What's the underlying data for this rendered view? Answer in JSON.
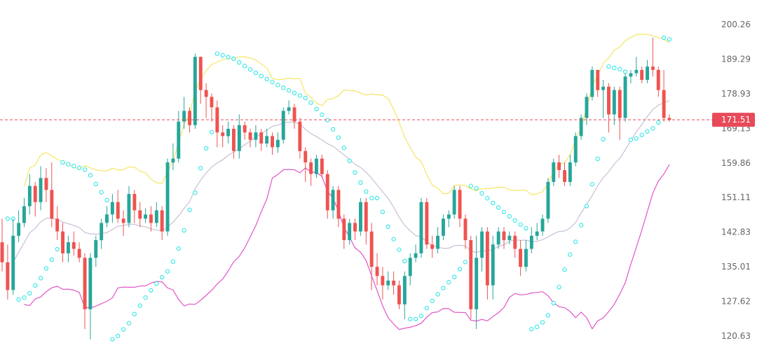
{
  "chart_data": {
    "type": "candlestick",
    "y_ticks": [
      "200.26",
      "189.29",
      "178.93",
      "169.13",
      "159.86",
      "151.11",
      "142.83",
      "135.01",
      "127.62",
      "120.63"
    ],
    "y_tick_values": [
      200.26,
      189.29,
      178.93,
      169.13,
      159.86,
      151.11,
      142.83,
      135.01,
      127.62,
      120.63
    ],
    "scale": "log",
    "ylim": [
      118.5,
      205
    ],
    "grid": false,
    "last_price": {
      "label": "171.51",
      "value": 171.51
    },
    "colors": {
      "up": "#26a69a",
      "down": "#ef5350",
      "upper_band": "#f5e663",
      "lower_band": "#e056c8",
      "middle_band": "#c9bfd6",
      "sar": "#2ee6e6",
      "price_tag": "#e84a5a"
    },
    "candles": [
      [
        140.5,
        136.0,
        146.0,
        134.0
      ],
      [
        136.0,
        130.0,
        140.0,
        128.0
      ],
      [
        130.0,
        142.0,
        146.0,
        129.0
      ],
      [
        142.0,
        145.0,
        148.0,
        140.5
      ],
      [
        145.0,
        149.0,
        151.0,
        144.0
      ],
      [
        149.0,
        154.0,
        157.0,
        147.0
      ],
      [
        154.0,
        150.0,
        155.0,
        146.5
      ],
      [
        150.0,
        156.0,
        159.0,
        148.0
      ],
      [
        156.0,
        153.0,
        158.5,
        150.0
      ],
      [
        153.0,
        146.0,
        160.0,
        144.0
      ],
      [
        146.0,
        143.0,
        149.0,
        141.0
      ],
      [
        143.0,
        138.0,
        145.0,
        136.0
      ],
      [
        138.0,
        140.5,
        142.0,
        136.0
      ],
      [
        140.5,
        139.0,
        143.0,
        137.5
      ],
      [
        139.0,
        137.0,
        140.5,
        136.0
      ],
      [
        137.0,
        126.0,
        138.0,
        122.0
      ],
      [
        126.0,
        137.0,
        138.0,
        120.0
      ],
      [
        137.0,
        141.0,
        142.0,
        135.0
      ],
      [
        141.0,
        145.0,
        146.0,
        139.0
      ],
      [
        145.0,
        147.0,
        149.0,
        144.0
      ],
      [
        147.0,
        150.0,
        152.0,
        145.0
      ],
      [
        150.0,
        146.0,
        153.0,
        145.0
      ],
      [
        146.0,
        145.0,
        148.0,
        142.0
      ],
      [
        145.0,
        152.0,
        154.0,
        144.0
      ],
      [
        152.0,
        148.0,
        153.0,
        145.0
      ],
      [
        148.0,
        146.0,
        150.0,
        144.0
      ],
      [
        146.0,
        147.0,
        148.5,
        145.0
      ],
      [
        147.0,
        145.0,
        149.0,
        143.0
      ],
      [
        145.0,
        148.0,
        150.0,
        144.0
      ],
      [
        148.0,
        143.0,
        149.0,
        141.0
      ],
      [
        143.0,
        160.0,
        161.0,
        142.0
      ],
      [
        160.0,
        161.0,
        165.0,
        158.0
      ],
      [
        161.0,
        171.0,
        174.0,
        160.0
      ],
      [
        171.0,
        174.0,
        178.0,
        169.0
      ],
      [
        174.0,
        170.0,
        175.0,
        168.0
      ],
      [
        170.0,
        190.0,
        191.0,
        169.0
      ],
      [
        190.0,
        180.0,
        190.0,
        176.0
      ],
      [
        180.0,
        178.0,
        182.0,
        172.0
      ],
      [
        178.0,
        175.0,
        179.0,
        171.0
      ],
      [
        175.0,
        168.0,
        177.0,
        164.0
      ],
      [
        168.0,
        167.0,
        170.0,
        164.0
      ],
      [
        167.0,
        169.0,
        171.0,
        165.0
      ],
      [
        169.0,
        163.0,
        170.0,
        161.0
      ],
      [
        163.0,
        170.0,
        173.0,
        161.0
      ],
      [
        170.0,
        168.0,
        171.0,
        166.0
      ],
      [
        168.0,
        166.0,
        169.0,
        164.0
      ],
      [
        166.0,
        168.0,
        170.0,
        164.0
      ],
      [
        168.0,
        165.0,
        169.0,
        163.0
      ],
      [
        165.0,
        167.0,
        169.0,
        164.0
      ],
      [
        167.0,
        164.0,
        168.0,
        162.0
      ],
      [
        164.0,
        166.0,
        168.0,
        162.5
      ],
      [
        166.0,
        174.0,
        175.0,
        165.0
      ],
      [
        174.0,
        175.0,
        177.0,
        173.0
      ],
      [
        175.0,
        171.0,
        176.0,
        169.0
      ],
      [
        171.0,
        163.0,
        172.0,
        161.0
      ],
      [
        163.0,
        160.0,
        164.0,
        155.0
      ],
      [
        160.0,
        157.0,
        161.0,
        154.0
      ],
      [
        157.0,
        161.0,
        162.0,
        156.0
      ],
      [
        161.0,
        157.0,
        162.0,
        156.0
      ],
      [
        157.0,
        148.0,
        158.0,
        146.0
      ],
      [
        148.0,
        153.0,
        154.0,
        146.0
      ],
      [
        153.0,
        146.0,
        154.0,
        144.0
      ],
      [
        146.0,
        141.0,
        147.0,
        139.0
      ],
      [
        141.0,
        145.0,
        146.0,
        140.0
      ],
      [
        145.0,
        143.0,
        146.0,
        141.0
      ],
      [
        143.0,
        150.0,
        151.0,
        142.0
      ],
      [
        150.0,
        143.0,
        151.0,
        140.0
      ],
      [
        143.0,
        135.0,
        145.0,
        130.0
      ],
      [
        135.0,
        133.0,
        138.0,
        131.0
      ],
      [
        133.0,
        131.0,
        135.0,
        128.0
      ],
      [
        131.0,
        132.0,
        134.0,
        130.0
      ],
      [
        132.0,
        131.0,
        134.0,
        129.0
      ],
      [
        131.0,
        127.0,
        132.0,
        126.0
      ],
      [
        127.0,
        133.0,
        134.0,
        124.0
      ],
      [
        133.0,
        137.0,
        138.0,
        131.0
      ],
      [
        137.0,
        138.0,
        140.0,
        136.0
      ],
      [
        138.0,
        150.0,
        151.0,
        137.0
      ],
      [
        150.0,
        140.0,
        151.0,
        139.0
      ],
      [
        140.0,
        139.0,
        142.0,
        137.0
      ],
      [
        139.0,
        142.0,
        144.0,
        138.0
      ],
      [
        142.0,
        146.0,
        147.0,
        141.0
      ],
      [
        146.0,
        147.0,
        148.0,
        144.0
      ],
      [
        147.0,
        153.0,
        154.0,
        146.0
      ],
      [
        153.0,
        146.0,
        154.0,
        144.0
      ],
      [
        146.0,
        141.0,
        147.0,
        139.0
      ],
      [
        141.0,
        126.0,
        142.0,
        124.0
      ],
      [
        126.0,
        137.0,
        142.0,
        122.0
      ],
      [
        137.0,
        143.0,
        144.0,
        134.0
      ],
      [
        143.0,
        131.0,
        144.0,
        128.0
      ],
      [
        131.0,
        140.0,
        142.0,
        128.0
      ],
      [
        140.0,
        143.0,
        144.0,
        139.0
      ],
      [
        143.0,
        141.0,
        144.0,
        139.0
      ],
      [
        141.0,
        142.0,
        143.0,
        140.0
      ],
      [
        142.0,
        139.0,
        143.0,
        137.0
      ],
      [
        139.0,
        135.0,
        141.0,
        133.0
      ],
      [
        135.0,
        139.0,
        141.0,
        134.0
      ],
      [
        139.0,
        142.0,
        144.0,
        138.0
      ],
      [
        142.0,
        143.0,
        145.0,
        141.0
      ],
      [
        143.0,
        146.0,
        147.0,
        142.0
      ],
      [
        146.0,
        155.0,
        156.0,
        145.0
      ],
      [
        155.0,
        160.0,
        161.0,
        154.0
      ],
      [
        160.0,
        158.0,
        162.0,
        156.0
      ],
      [
        158.0,
        155.0,
        160.0,
        154.0
      ],
      [
        155.0,
        160.0,
        162.0,
        154.0
      ],
      [
        160.0,
        167.0,
        168.0,
        159.0
      ],
      [
        167.0,
        172.0,
        173.0,
        166.0
      ],
      [
        172.0,
        178.0,
        179.0,
        170.0
      ],
      [
        178.0,
        186.0,
        187.0,
        177.0
      ],
      [
        186.0,
        180.0,
        186.0,
        178.0
      ],
      [
        180.0,
        181.0,
        183.0,
        172.0
      ],
      [
        181.0,
        173.0,
        182.0,
        168.0
      ],
      [
        173.0,
        180.0,
        181.0,
        170.0
      ],
      [
        180.0,
        172.0,
        181.0,
        166.0
      ],
      [
        172.0,
        184.0,
        185.0,
        171.0
      ],
      [
        184.0,
        185.0,
        186.0,
        182.0
      ],
      [
        185.0,
        186.0,
        190.0,
        184.0
      ],
      [
        186.0,
        183.0,
        187.0,
        182.0
      ],
      [
        183.0,
        187.0,
        189.0,
        182.0
      ],
      [
        187.0,
        186.0,
        196.0,
        184.0
      ],
      [
        186.0,
        180.0,
        187.0,
        178.0
      ],
      [
        180.0,
        172.0,
        186.0,
        171.0
      ],
      [
        172.0,
        171.51,
        173.0,
        171.0
      ]
    ]
  }
}
